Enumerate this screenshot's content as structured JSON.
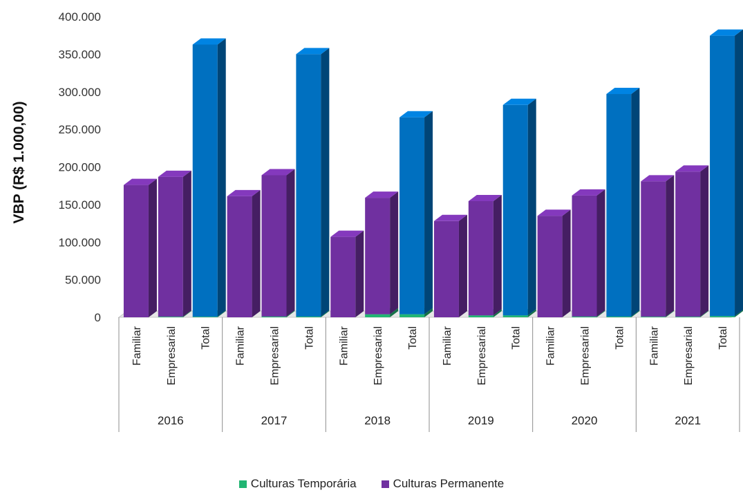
{
  "chart_data": {
    "type": "bar",
    "ylabel": "VBP (R$ 1.000,00)",
    "xlabel": "",
    "ylim": [
      0,
      400000
    ],
    "y_ticks": [
      "0",
      "50.000",
      "100.000",
      "150.000",
      "200.000",
      "250.000",
      "300.000",
      "350.000",
      "400.000"
    ],
    "grid": false,
    "legend_position": "bottom",
    "groups": [
      "2016",
      "2017",
      "2018",
      "2019",
      "2020",
      "2021"
    ],
    "categories": [
      "Familiar",
      "Empresarial",
      "Total"
    ],
    "series": [
      {
        "name": "Culturas Temporária",
        "color": "#22b573",
        "values": [
          [
            0,
            800,
            800
          ],
          [
            0,
            1000,
            1000
          ],
          [
            0,
            4000,
            4000
          ],
          [
            0,
            2500,
            2500
          ],
          [
            0,
            1000,
            1000
          ],
          [
            800,
            800,
            1600
          ]
        ]
      },
      {
        "name": "Culturas Permanente",
        "color": "#7030a0",
        "values": [
          [
            176000,
            186000,
            362000
          ],
          [
            161000,
            188000,
            349000
          ],
          [
            107000,
            155000,
            262000
          ],
          [
            128000,
            152000,
            280000
          ],
          [
            135000,
            161000,
            296000
          ],
          [
            180000,
            193000,
            373000
          ]
        ]
      }
    ],
    "total_color": "#0070c0"
  }
}
